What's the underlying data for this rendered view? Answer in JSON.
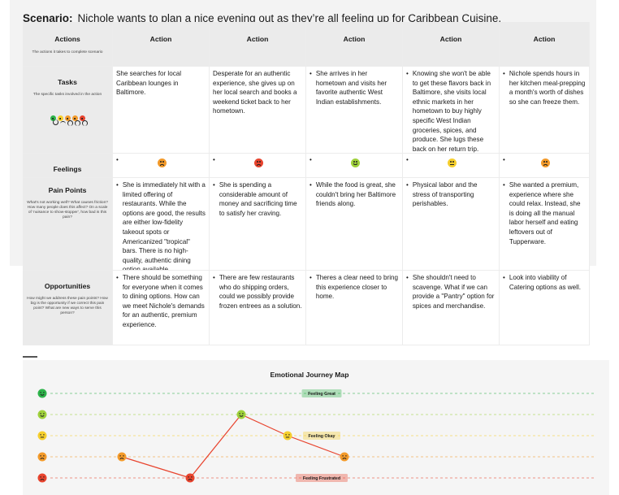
{
  "scenario": {
    "label": "Scenario:",
    "text": "Nichole wants to plan a nice evening out as they’re all feeling up for Caribbean Cuisine."
  },
  "table": {
    "header_label": "Actions",
    "header_sub": "The actions it takes to complete scenario",
    "column_header": "Action",
    "rows": {
      "tasks": {
        "title": "Tasks",
        "sub": "The specific tasks involved in the action"
      },
      "feelings": {
        "title": "Feelings"
      },
      "pain": {
        "title": "Pain Points",
        "sub": "What's not working well? What causes friction? How many people does this affect? On a scale of 'nuisance to show-stopper', how bad is this pain?"
      },
      "opps": {
        "title": "Opportunities",
        "sub": "How might we address these pain points? How big is the opportunity if we correct this pain point? What are new ways to serve this person?"
      }
    },
    "columns": [
      {
        "task": "She searches for local Caribbean lounges in Baltimore.",
        "feeling": "okay",
        "pain": "She is immediately hit with a limited offering of restaurants. While the options are good, the results are either low-fidelity takeout spots or Americanized \"tropical\" bars. There is no high-quality, authentic dining option available.",
        "opportunity": "There should be something for everyone when it comes to dining options. How can we meet Nichole's demands for an authentic, premium experience."
      },
      {
        "task": "Desperate for an authentic experience, she gives up on her local search and books a weekend ticket back to her hometown.",
        "feeling": "frustrated",
        "pain": "She is spending a considerable amount  of money and sacrificing time to satisfy her craving.",
        "opportunity": "There are few restaurants who do shipping orders, could we possibly provide frozen entrees as a solution."
      },
      {
        "task": "She arrives in her hometown and visits her favorite authentic West Indian establishments.",
        "feeling": "good",
        "pain": "While the food is great, she couldn't bring her Baltimore friends along.",
        "opportunity": "Theres a clear need to bring this experience closer to home."
      },
      {
        "task": "Knowing she won't be able to get these flavors back in Baltimore, she visits local ethnic markets in her hometown to buy highly specific West Indian groceries, spices, and produce. She lugs these back on her return trip.",
        "feeling": "neutral",
        "pain": "Physical labor and the stress of transporting perishables.",
        "opportunity": "She shouldn't need to scavenge. What if we can provide a \"Pantry\" option for spices and merchandise."
      },
      {
        "task": "Nichole spends hours in her kitchen meal-prepping a month's worth of dishes so she can freeze them.",
        "feeling": "okay",
        "pain": "She wanted a premium, experience where she could relax. Instead, she is doing all the manual labor herself and eating leftovers out of Tupperware.",
        "opportunity": "Look into viability of Catering options as well."
      }
    ]
  },
  "colors": {
    "great": "#2db34a",
    "good": "#9fd13b",
    "neutral": "#f6cf2e",
    "okay": "#f39a2a",
    "frustrated": "#e8442e",
    "line": "#e8442e"
  },
  "chart_data": {
    "type": "line",
    "title": "Emotional Journey Map",
    "levels": [
      {
        "key": "great",
        "label": "Feeling Great",
        "value": 5
      },
      {
        "key": "good",
        "label": "",
        "value": 4
      },
      {
        "key": "neutral",
        "label": "Feeling Okay",
        "value": 3
      },
      {
        "key": "okay",
        "label": "",
        "value": 2
      },
      {
        "key": "frustrated",
        "label": "Feeling Frustrated",
        "value": 1
      }
    ],
    "x": [
      1,
      2,
      3,
      4,
      5
    ],
    "values": [
      2,
      1,
      4,
      3,
      2
    ]
  }
}
